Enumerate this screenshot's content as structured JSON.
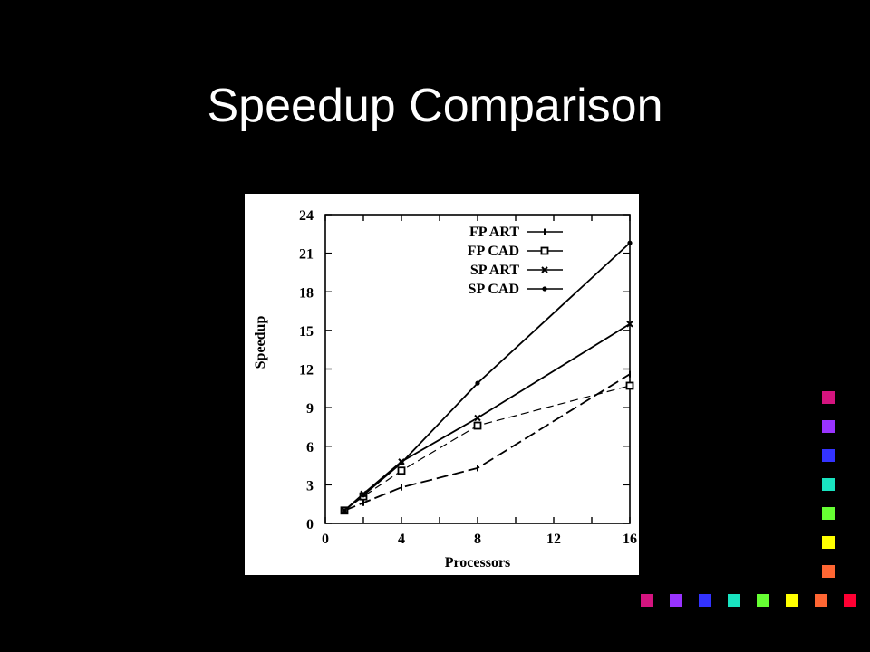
{
  "slide": {
    "title": "Speedup Comparison"
  },
  "chart_data": {
    "type": "line",
    "title": "",
    "xlabel": "Processors",
    "ylabel": "Speedup",
    "xlim": [
      0,
      16
    ],
    "ylim": [
      0,
      24
    ],
    "xticks": [
      0,
      4,
      8,
      12,
      16
    ],
    "yticks": [
      0,
      3,
      6,
      9,
      12,
      15,
      18,
      21,
      24
    ],
    "grid": false,
    "legend_position": "top-right",
    "series": [
      {
        "name": "FP ART",
        "marker": "tick",
        "style": "long-dash",
        "x": [
          1,
          2,
          4,
          8,
          16
        ],
        "y": [
          1.0,
          1.6,
          2.8,
          4.3,
          11.6
        ]
      },
      {
        "name": "FP CAD",
        "marker": "square",
        "style": "dash",
        "x": [
          1,
          2,
          4,
          8,
          16
        ],
        "y": [
          1.0,
          2.1,
          4.1,
          7.6,
          10.7
        ]
      },
      {
        "name": "SP ART",
        "marker": "x",
        "style": "solid",
        "x": [
          1,
          2,
          4,
          8,
          16
        ],
        "y": [
          1.0,
          2.3,
          4.8,
          8.2,
          15.5
        ]
      },
      {
        "name": "SP CAD",
        "marker": "dot",
        "style": "solid",
        "x": [
          1,
          2,
          4,
          8,
          16
        ],
        "y": [
          1.0,
          2.2,
          4.7,
          10.9,
          21.8
        ]
      }
    ]
  },
  "decoration": {
    "palette": [
      "#d4147f",
      "#9933ff",
      "#3333ff",
      "#19e3c0",
      "#66ff33",
      "#ffff00",
      "#ff6633",
      "#ff0033"
    ]
  }
}
